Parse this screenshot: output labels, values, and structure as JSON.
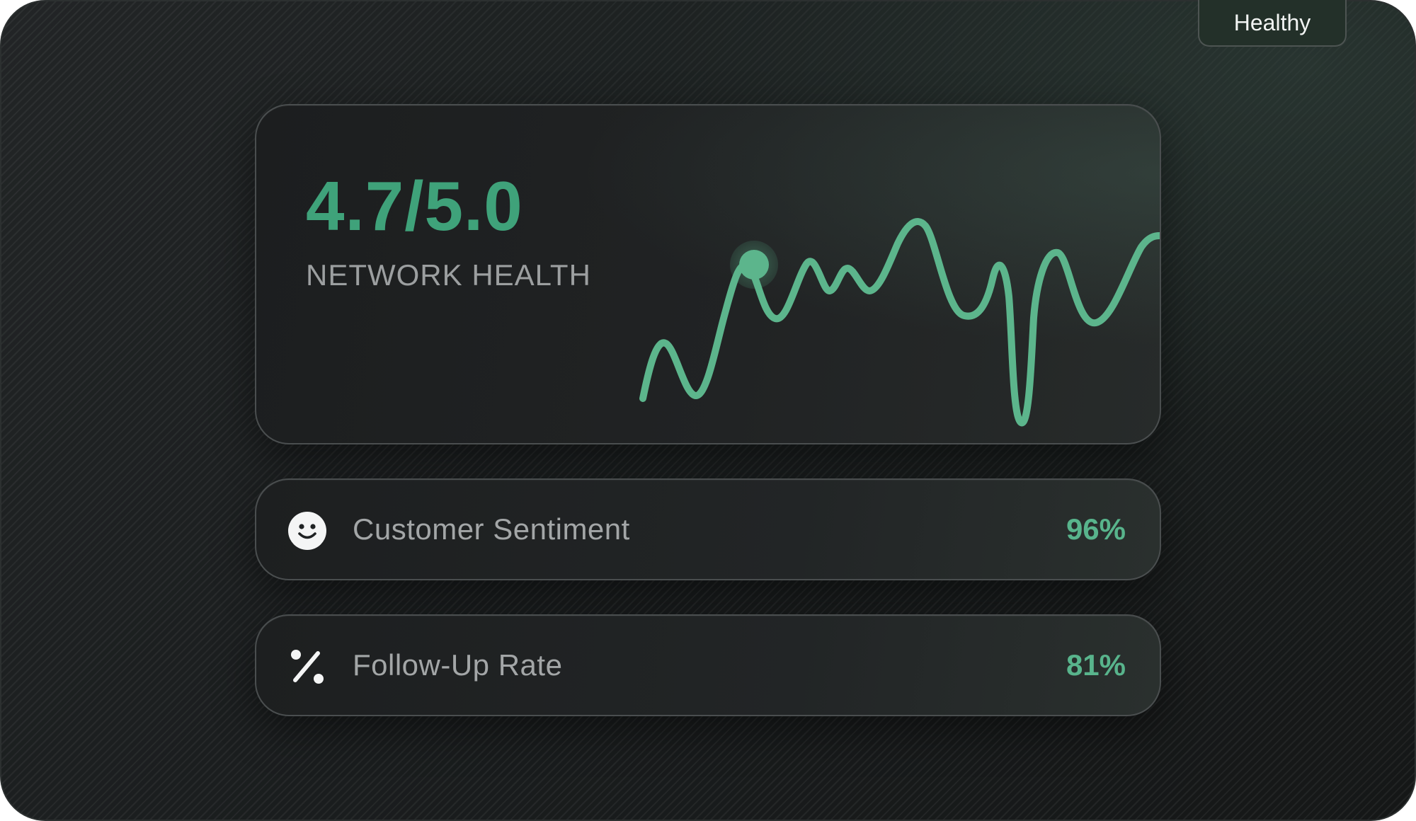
{
  "health_card": {
    "status_badge": "Healthy",
    "score": "4.7/5.0",
    "label": "NETWORK HEALTH",
    "sparkline_color": "#5cb58c"
  },
  "metrics": [
    {
      "icon": "smiley-face-icon",
      "label": "Customer Sentiment",
      "value": "96%"
    },
    {
      "icon": "percent-icon",
      "label": "Follow-Up Rate",
      "value": "81%"
    }
  ],
  "colors": {
    "accent": "#3fa27a",
    "value_green": "#58b48c",
    "background": "#1a1c1d",
    "card_border": "#4a4e4f",
    "muted_text": "#9c9fa0"
  }
}
